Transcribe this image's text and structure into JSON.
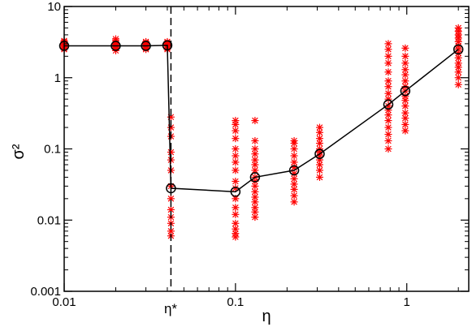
{
  "chart_data": {
    "type": "scatter",
    "title": "",
    "xlabel": "η",
    "ylabel": "σ²",
    "xscale": "log",
    "yscale": "log",
    "xlim": [
      0.01,
      2.3
    ],
    "ylim": [
      0.001,
      10
    ],
    "grid": false,
    "legend": "none",
    "x_ticks": [
      {
        "value": 0.01,
        "label": "0.01"
      },
      {
        "value": 0.1,
        "label": "0.1"
      },
      {
        "value": 1,
        "label": "1"
      }
    ],
    "y_ticks": [
      {
        "value": 0.001,
        "label": "0.001"
      },
      {
        "value": 0.01,
        "label": "0.01"
      },
      {
        "value": 0.1,
        "label": "0.1"
      },
      {
        "value": 1,
        "label": "1"
      },
      {
        "value": 10,
        "label": "10"
      }
    ],
    "critical_line": {
      "x": 0.042,
      "label": "η*"
    },
    "series": [
      {
        "type": "scatter",
        "marker": "asterisk",
        "color": "#ff0000",
        "groups": [
          {
            "x": 0.01,
            "y": [
              2.5,
              2.6,
              2.7,
              2.8,
              2.9,
              3.0,
              3.1,
              3.2,
              3.3
            ]
          },
          {
            "x": 0.02,
            "y": [
              2.4,
              2.6,
              2.7,
              2.8,
              2.9,
              3.0,
              3.1,
              3.3,
              3.5
            ]
          },
          {
            "x": 0.03,
            "y": [
              2.5,
              2.6,
              2.7,
              2.8,
              2.9,
              3.0,
              3.1,
              3.2
            ]
          },
          {
            "x": 0.04,
            "y": [
              2.5,
              2.6,
              2.8,
              2.9,
              3.0,
              3.1,
              3.2
            ]
          },
          {
            "x": 0.042,
            "y": [
              0.006,
              0.007,
              0.009,
              0.011,
              0.014,
              0.02,
              0.03,
              0.05,
              0.07,
              0.09,
              0.15,
              0.2,
              0.28
            ]
          },
          {
            "x": 0.1,
            "y": [
              0.0058,
              0.0065,
              0.0075,
              0.009,
              0.012,
              0.015,
              0.02,
              0.028,
              0.035,
              0.05,
              0.065,
              0.08,
              0.1,
              0.14,
              0.18,
              0.22,
              0.25
            ]
          },
          {
            "x": 0.13,
            "y": [
              0.011,
              0.013,
              0.015,
              0.018,
              0.021,
              0.025,
              0.03,
              0.035,
              0.04,
              0.05,
              0.06,
              0.07,
              0.085,
              0.1,
              0.13,
              0.25
            ]
          },
          {
            "x": 0.22,
            "y": [
              0.018,
              0.022,
              0.027,
              0.032,
              0.038,
              0.045,
              0.055,
              0.065,
              0.08,
              0.1,
              0.12,
              0.13
            ]
          },
          {
            "x": 0.31,
            "y": [
              0.04,
              0.05,
              0.06,
              0.07,
              0.08,
              0.09,
              0.1,
              0.12,
              0.14,
              0.17,
              0.2
            ]
          },
          {
            "x": 0.78,
            "y": [
              0.1,
              0.13,
              0.16,
              0.2,
              0.25,
              0.3,
              0.35,
              0.4,
              0.5,
              0.6,
              0.75,
              0.9,
              1.2,
              1.6,
              2.0,
              2.5,
              3.0
            ]
          },
          {
            "x": 0.98,
            "y": [
              0.18,
              0.22,
              0.27,
              0.32,
              0.4,
              0.48,
              0.55,
              0.65,
              0.75,
              0.9,
              1.1,
              1.3,
              1.6,
              2.0,
              2.6
            ]
          },
          {
            "x": 2.0,
            "y": [
              0.8,
              1.0,
              1.2,
              1.4,
              1.6,
              1.9,
              2.2,
              2.5,
              2.8,
              3.2,
              3.6,
              4.0,
              4.5,
              5.0
            ]
          }
        ]
      },
      {
        "type": "line",
        "marker": "circle",
        "color": "#000000",
        "x": [
          0.01,
          0.02,
          0.03,
          0.04,
          0.042,
          0.1,
          0.13,
          0.22,
          0.31,
          0.78,
          0.98,
          2.0
        ],
        "y": [
          2.8,
          2.8,
          2.8,
          2.85,
          0.028,
          0.025,
          0.04,
          0.05,
          0.085,
          0.42,
          0.65,
          2.5
        ]
      }
    ]
  }
}
